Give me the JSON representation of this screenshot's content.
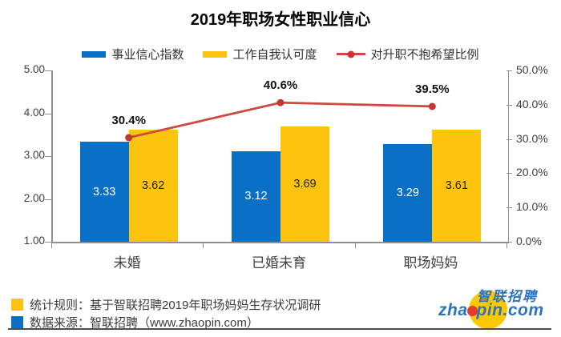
{
  "title": "2019年职场女性职业信心",
  "chart_data": {
    "type": "combo-bar-line",
    "title": "2019年职场女性职业信心",
    "categories": [
      "未婚",
      "已婚未育",
      "职场妈妈"
    ],
    "series": [
      {
        "name": "事业信心指数",
        "type": "bar",
        "axis": "left",
        "color": "#0a70c6",
        "label_color": "#ffffff",
        "values": [
          3.33,
          3.12,
          3.29
        ],
        "labels": [
          "3.33",
          "3.12",
          "3.29"
        ]
      },
      {
        "name": "工作自我认可度",
        "type": "bar",
        "axis": "left",
        "color": "#fdc40d",
        "label_color": "#1f1f1f",
        "values": [
          3.62,
          3.69,
          3.61
        ],
        "labels": [
          "3.62",
          "3.69",
          "3.61"
        ]
      },
      {
        "name": "对升职不抱希望比例",
        "type": "line",
        "axis": "right",
        "color": "#cb4a42",
        "marker_color": "#bf3a33",
        "values": [
          30.4,
          40.6,
          39.5
        ],
        "labels": [
          "30.4%",
          "40.6%",
          "39.5%"
        ]
      }
    ],
    "left_axis": {
      "min": 1,
      "max": 5,
      "ticks": [
        "5.00",
        "4.00",
        "3.00",
        "2.00",
        "1.00"
      ]
    },
    "right_axis": {
      "min": 0,
      "max": 50,
      "ticks": [
        "50.0%",
        "40.0%",
        "30.0%",
        "20.0%",
        "10.0%",
        "0.0%"
      ]
    },
    "legend_position": "top",
    "grid": false
  },
  "footer": {
    "rows": [
      {
        "swatch_color": "#fdc40d",
        "text": "统计规则：基于智联招聘2019年职场妈妈生存状况调研"
      },
      {
        "swatch_color": "#0a70c6",
        "text": "数据来源：智联招聘（www.zhaopin.com）"
      }
    ]
  },
  "logo": {
    "cn": "智联招聘",
    "en": "zhaopin.com",
    "en_left": "zha",
    "en_right": "pin.com",
    "circle_color": "#fdc800",
    "dot_color": "#e23c30",
    "text_color": "#2d72c1"
  }
}
